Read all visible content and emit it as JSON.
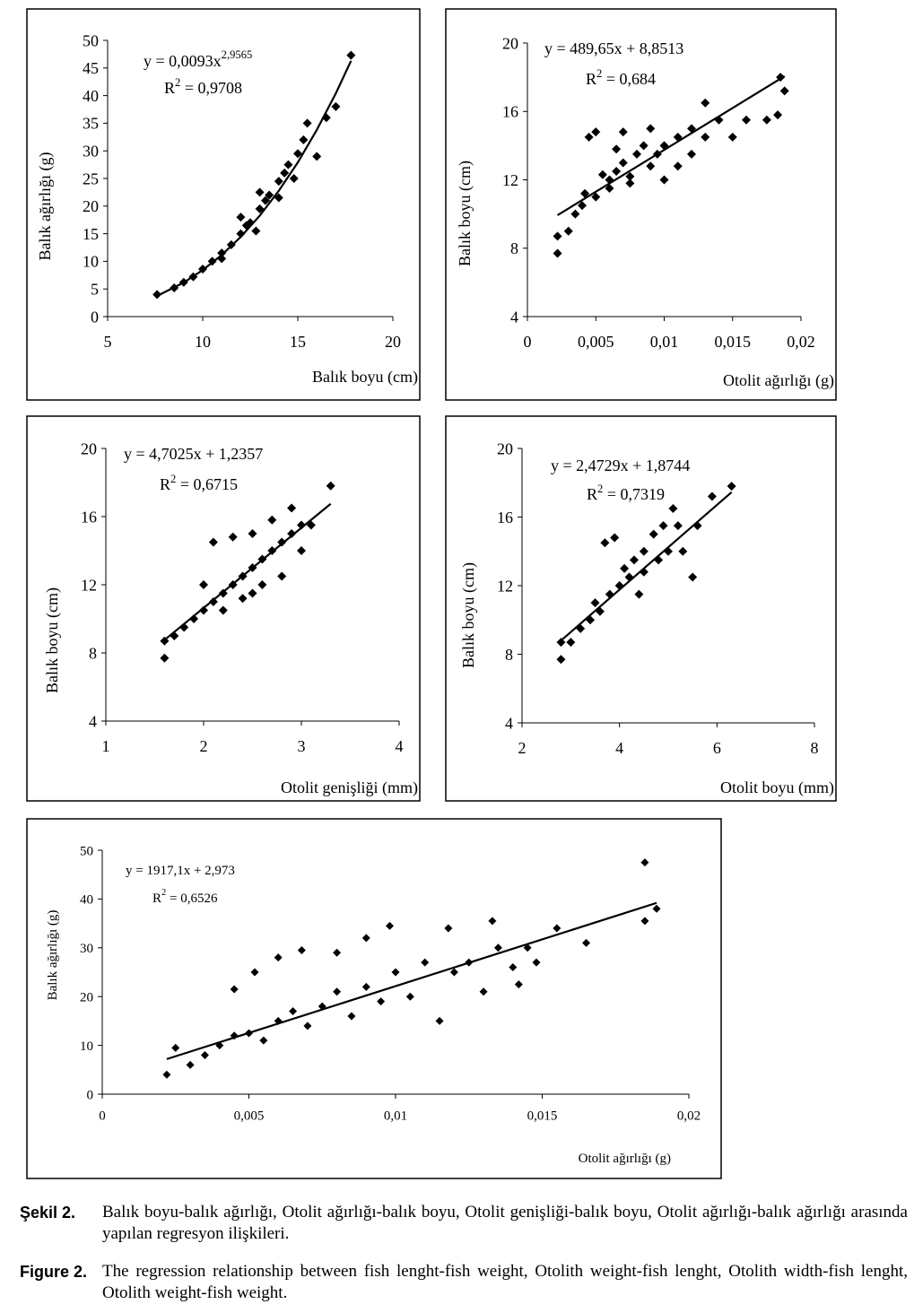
{
  "chart_data": [
    {
      "type": "scatter",
      "xlabel": "Balık boyu (cm)",
      "ylabel": "Balık ağırlığı (g)",
      "equation": {
        "base": "y = 0,0093x",
        "exponent": "2,9565"
      },
      "r_squared": {
        "symbol": "R",
        "exponent": "2",
        "text": " = 0,9708"
      },
      "xlim": [
        5,
        20
      ],
      "xticks": [
        5,
        10,
        15,
        20
      ],
      "ylim": [
        0,
        50
      ],
      "yticks": [
        0,
        5,
        10,
        15,
        20,
        25,
        30,
        35,
        40,
        45,
        50
      ],
      "color": "#000000",
      "x": [
        7.6,
        8.5,
        9,
        9.5,
        10,
        10.5,
        11,
        11.5,
        12,
        12.3,
        12.5,
        13,
        13.3,
        13.5,
        14,
        14.3,
        14.5,
        15,
        15.3,
        15.5,
        16,
        16.5,
        17,
        17.8,
        12,
        13,
        14,
        11,
        12.8,
        14.8
      ],
      "y": [
        4,
        5.2,
        6.2,
        7.2,
        8.6,
        10,
        11.5,
        13,
        15,
        16.5,
        17,
        19.5,
        21,
        22,
        24.5,
        26,
        27.5,
        29.5,
        32,
        35,
        29,
        36,
        38,
        47.3,
        18,
        22.5,
        21.5,
        10.5,
        15.5,
        25
      ],
      "trendline": {
        "x": [
          7.6,
          9,
          10,
          11,
          12,
          13,
          14,
          15,
          16,
          17,
          17.8
        ],
        "y": [
          3.74,
          6.17,
          8.42,
          11.15,
          14.43,
          18.27,
          22.77,
          27.9,
          33.8,
          40.4,
          46.3
        ]
      }
    },
    {
      "type": "scatter",
      "xlabel": "Otolit ağırlığı (g)",
      "ylabel": "Balık boyu (cm)",
      "equation": {
        "base": "y = 489,65x + 8,8513"
      },
      "r_squared": {
        "symbol": "R",
        "exponent": "2",
        "text": " = 0,684"
      },
      "xlim": [
        0,
        0.02
      ],
      "xticks": [
        0,
        {
          "value": 0.005,
          "label": "0,005"
        },
        {
          "value": 0.01,
          "label": "0,01"
        },
        {
          "value": 0.015,
          "label": "0,015"
        },
        {
          "value": 0.02,
          "label": "0,02"
        }
      ],
      "ylim": [
        4,
        20
      ],
      "yticks": [
        4,
        8,
        12,
        16,
        20
      ],
      "color": "#000000",
      "x": [
        0.0022,
        0.0022,
        0.003,
        0.0035,
        0.004,
        0.0042,
        0.0045,
        0.005,
        0.005,
        0.006,
        0.006,
        0.0065,
        0.007,
        0.007,
        0.0075,
        0.008,
        0.0085,
        0.009,
        0.009,
        0.0095,
        0.01,
        0.01,
        0.011,
        0.011,
        0.012,
        0.012,
        0.013,
        0.013,
        0.014,
        0.015,
        0.016,
        0.0175,
        0.0183,
        0.0185,
        0.0188,
        0.0075,
        0.0065,
        0.0055
      ],
      "y": [
        7.7,
        8.7,
        9,
        10,
        10.5,
        11.2,
        14.5,
        14.8,
        11,
        12,
        11.5,
        12.5,
        13,
        14.8,
        12.2,
        13.5,
        14,
        12.8,
        15,
        13.5,
        14,
        12,
        14.5,
        12.8,
        15,
        13.5,
        16.5,
        14.5,
        15.5,
        14.5,
        15.5,
        15.5,
        15.8,
        18,
        17.2,
        11.8,
        13.8,
        12.3
      ],
      "trendline": {
        "x": [
          0.0022,
          0.0188
        ],
        "y": [
          9.93,
          18.06
        ]
      }
    },
    {
      "type": "scatter",
      "xlabel": "Otolit genişliği (mm)",
      "ylabel": "Balık boyu (cm)",
      "equation": {
        "base": "y = 4,7025x + 1,2357"
      },
      "r_squared": {
        "symbol": "R",
        "exponent": "2",
        "text": " = 0,6715"
      },
      "xlim": [
        1,
        4
      ],
      "xticks": [
        1,
        2,
        3,
        4
      ],
      "ylim": [
        4,
        20
      ],
      "yticks": [
        4,
        8,
        12,
        16,
        20
      ],
      "color": "#000000",
      "x": [
        1.6,
        1.6,
        1.7,
        1.8,
        1.9,
        2,
        2.1,
        2.1,
        2.2,
        2.3,
        2.3,
        2.4,
        2.4,
        2.5,
        2.5,
        2.6,
        2.6,
        2.7,
        2.7,
        2.8,
        2.8,
        2.9,
        2.9,
        3,
        3,
        3.1,
        3.3,
        2.2,
        2.5,
        2
      ],
      "y": [
        7.7,
        8.7,
        9,
        9.5,
        10,
        10.5,
        11,
        14.5,
        11.5,
        12,
        14.8,
        12.5,
        11.2,
        13,
        15,
        13.5,
        12,
        14,
        15.8,
        14.5,
        12.5,
        15,
        16.5,
        15.5,
        14,
        15.5,
        17.8,
        10.5,
        11.5,
        12
      ],
      "trendline": {
        "x": [
          1.6,
          3.3
        ],
        "y": [
          8.76,
          16.75
        ]
      }
    },
    {
      "type": "scatter",
      "xlabel": "Otolit boyu (mm)",
      "ylabel": "Balık boyu (cm)",
      "equation": {
        "base": "y = 2,4729x + 1,8744"
      },
      "r_squared": {
        "symbol": "R",
        "exponent": "2",
        "text": " = 0,7319"
      },
      "xlim": [
        2,
        8
      ],
      "xticks": [
        2,
        4,
        6,
        8
      ],
      "ylim": [
        4,
        20
      ],
      "yticks": [
        4,
        8,
        12,
        16,
        20
      ],
      "color": "#000000",
      "x": [
        2.8,
        2.8,
        3,
        3.2,
        3.4,
        3.6,
        3.7,
        3.8,
        3.9,
        4,
        4.2,
        4.3,
        4.4,
        4.5,
        4.5,
        4.7,
        4.8,
        4.9,
        5,
        5.1,
        5.2,
        5.3,
        5.5,
        5.6,
        5.9,
        6.3,
        4.1,
        3.5
      ],
      "y": [
        7.7,
        8.7,
        8.7,
        9.5,
        10,
        10.5,
        14.5,
        11.5,
        14.8,
        12,
        12.5,
        13.5,
        11.5,
        14,
        12.8,
        15,
        13.5,
        15.5,
        14,
        16.5,
        15.5,
        14,
        12.5,
        15.5,
        17.2,
        17.8,
        13,
        11
      ],
      "trendline": {
        "x": [
          2.8,
          6.3
        ],
        "y": [
          8.8,
          17.45
        ]
      }
    },
    {
      "type": "scatter",
      "xlabel": "Otolit ağırlığı (g)",
      "ylabel": "Balık ağırlığı (g)",
      "equation": {
        "base": "y = 1917,1x + 2,973"
      },
      "r_squared": {
        "symbol": "R",
        "exponent": "2",
        "text": " = 0,6526"
      },
      "xlim": [
        0,
        0.02
      ],
      "xticks": [
        0,
        {
          "value": 0.005,
          "label": "0,005"
        },
        {
          "value": 0.01,
          "label": "0,01"
        },
        {
          "value": 0.015,
          "label": "0,015"
        },
        {
          "value": 0.02,
          "label": "0,02"
        }
      ],
      "ylim": [
        0,
        50
      ],
      "yticks": [
        0,
        10,
        20,
        30,
        40,
        50
      ],
      "color": "#000000",
      "x": [
        0.0022,
        0.0025,
        0.003,
        0.0035,
        0.004,
        0.0045,
        0.0045,
        0.005,
        0.0052,
        0.0055,
        0.006,
        0.006,
        0.0065,
        0.0068,
        0.007,
        0.0075,
        0.008,
        0.008,
        0.0085,
        0.009,
        0.009,
        0.0095,
        0.01,
        0.0098,
        0.0105,
        0.011,
        0.0115,
        0.012,
        0.0118,
        0.0125,
        0.013,
        0.0133,
        0.0135,
        0.014,
        0.0145,
        0.0155,
        0.0165,
        0.0185,
        0.0185,
        0.0189,
        0.0142,
        0.0148
      ],
      "y": [
        4,
        9.5,
        6,
        8,
        10,
        12,
        21.5,
        12.5,
        25,
        11,
        15,
        28,
        17,
        29.5,
        14,
        18,
        21,
        29,
        16,
        22,
        32,
        19,
        25,
        34.5,
        20,
        27,
        15,
        25,
        34,
        27,
        21,
        35.5,
        30,
        26,
        30,
        34,
        31,
        47.5,
        35.5,
        38,
        22.5,
        27
      ],
      "trendline": {
        "x": [
          0.0022,
          0.0189
        ],
        "y": [
          7.19,
          39.2
        ]
      }
    }
  ],
  "caption": {
    "tr_label": "Şekil 2.",
    "tr_text": "Balık boyu-balık ağırlığı, Otolit ağırlığı-balık boyu, Otolit genişliği-balık boyu, Otolit ağırlığı-balık ağırlığı arasında yapılan regresyon ilişkileri.",
    "en_label": "Figure 2.",
    "en_text": "The regression relationship between fish lenght-fish weight, Otolith weight-fish lenght, Otolith width-fish lenght, Otolith weight-fish weight."
  }
}
